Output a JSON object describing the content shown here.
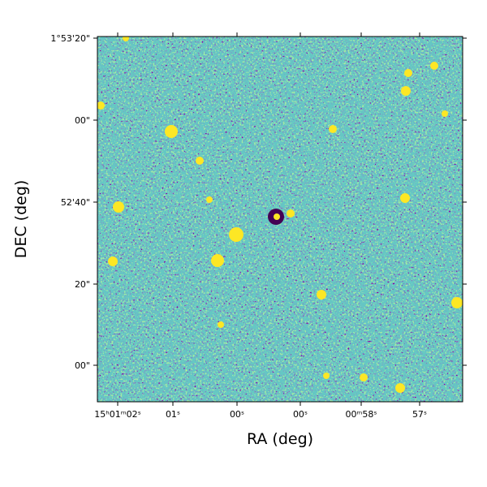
{
  "chart_data": {
    "type": "image",
    "xlabel": "RA (deg)",
    "ylabel": "DEC (deg)",
    "xtick_labels": [
      "15ʰ01ᵐ02ˢ",
      "01ˢ",
      "00ˢ",
      "00ˢ",
      "00ᵐ58ˢ",
      "57ˢ"
    ],
    "ytick_labels": [
      "1°53'20\"",
      "00\"",
      "52'40\"",
      "20\"",
      "00\""
    ],
    "colormap": "viridis"
  }
}
